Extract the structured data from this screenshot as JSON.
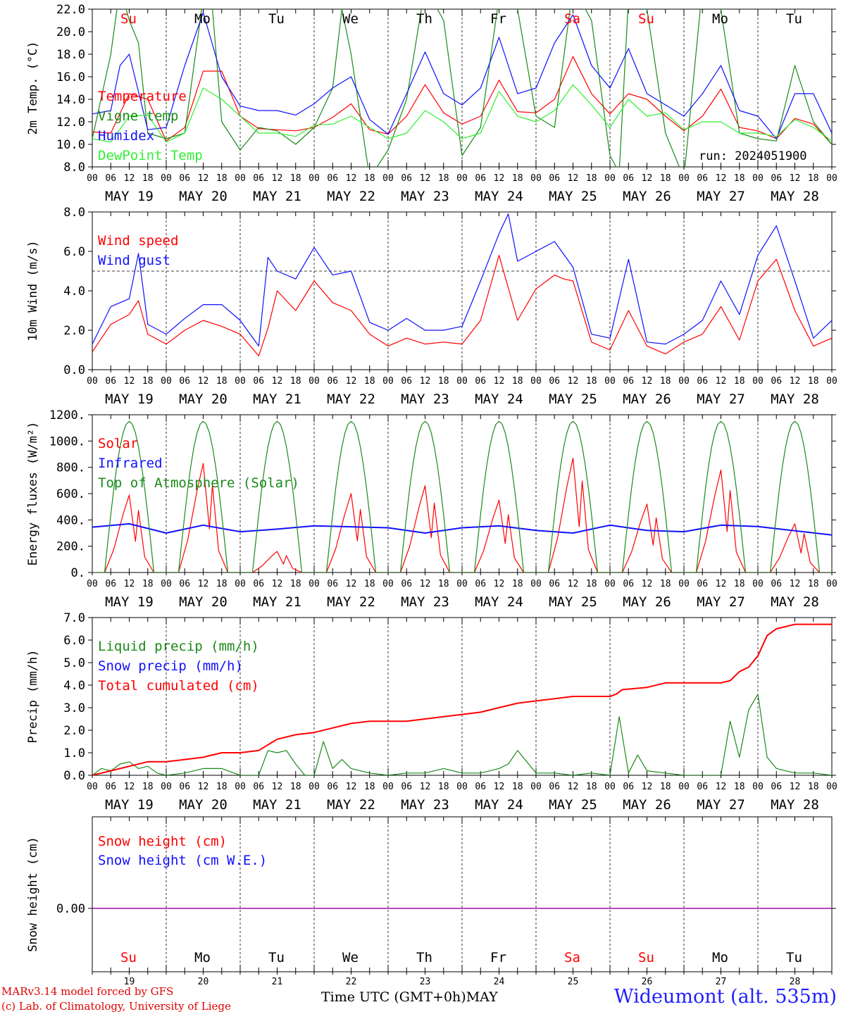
{
  "run_label": "run: 2024051900",
  "x_axis": {
    "hour_ticks": [
      "00",
      "06",
      "12",
      "18"
    ],
    "date_labels": [
      "MAY 19",
      "MAY 20",
      "MAY 21",
      "MAY 22",
      "MAY 23",
      "MAY 24",
      "MAY 25",
      "MAY 26",
      "MAY 27",
      "MAY 28"
    ],
    "weekdays": [
      "Su",
      "Mo",
      "Tu",
      "We",
      "Th",
      "Fr",
      "Sa",
      "Su",
      "Mo",
      "Tu"
    ],
    "weekend_flags": [
      true,
      false,
      false,
      false,
      false,
      false,
      true,
      true,
      false,
      false
    ],
    "day_numbers": [
      "19",
      "20",
      "21",
      "22",
      "23",
      "24",
      "25",
      "26",
      "27",
      "28"
    ],
    "month": "MAY",
    "time_label": "Time UTC (GMT+0h)"
  },
  "footer": {
    "credit_line1": "MARv3.14 model forced by GFS",
    "credit_line2": "(c) Lab. of Climatology, University of Liege",
    "station": "Wideumont (alt. 535m)"
  },
  "colors": {
    "red": "#ff0000",
    "dark_green": "#1a8a1a",
    "blue": "#1010ff",
    "light_green": "#33ee33",
    "purple": "#9900aa",
    "footer_red": "#e00000"
  },
  "chart_data": [
    {
      "type": "line",
      "ylabel": "2m Temp. (°C)",
      "ylim": [
        8,
        22
      ],
      "yticks": [
        8,
        10,
        12,
        14,
        16,
        18,
        20,
        22
      ],
      "ytick_labels": [
        "8.0",
        "10.0",
        "12.0",
        "14.0",
        "16.0",
        "18.0",
        "20.0",
        "22.0"
      ],
      "x_unit": "hours since 2024-05-19 00 UTC",
      "series": [
        {
          "name": "Temperature",
          "color": "#ff0000",
          "x": [
            0,
            6,
            12,
            18,
            24,
            30,
            36,
            42,
            48,
            54,
            60,
            66,
            72,
            78,
            84,
            90,
            96,
            102,
            108,
            114,
            120,
            126,
            132,
            138,
            144,
            150,
            156,
            162,
            168,
            174,
            180,
            186,
            192,
            198,
            204,
            210,
            216,
            222,
            228,
            234,
            240
          ],
          "y": [
            11.1,
            11.0,
            14.5,
            14.0,
            10.3,
            11.5,
            16.5,
            16.5,
            12.5,
            11.4,
            11.3,
            11.2,
            11.5,
            12.4,
            13.6,
            11.3,
            10.9,
            12.5,
            15.3,
            12.8,
            11.8,
            12.5,
            15.7,
            12.9,
            12.8,
            14.0,
            17.8,
            14.5,
            12.7,
            14.5,
            14.0,
            12.5,
            11.2,
            12.5,
            14.9,
            11.5,
            11.2,
            10.5,
            12.3,
            11.8,
            10.0
          ]
        },
        {
          "name": "Vigne temp",
          "color": "#1a8a1a",
          "x": [
            0,
            6,
            9,
            12,
            15,
            18,
            24,
            30,
            36,
            39,
            42,
            48,
            54,
            60,
            66,
            72,
            78,
            81,
            84,
            90,
            96,
            102,
            108,
            114,
            120,
            126,
            132,
            138,
            144,
            150,
            156,
            162,
            168,
            171,
            174,
            180,
            186,
            192,
            198,
            204,
            210,
            216,
            222,
            228,
            234,
            240
          ],
          "y": [
            10.5,
            18,
            24,
            21,
            19,
            11,
            10.5,
            11,
            23,
            22,
            12,
            9.5,
            11.5,
            11.2,
            10,
            11.5,
            15,
            22,
            18,
            7,
            9.5,
            14,
            24,
            21,
            9,
            11.5,
            23,
            22,
            12.5,
            11.5,
            24,
            21,
            9,
            7.5,
            23,
            22,
            11,
            7,
            24,
            22,
            11,
            10.5,
            10.3,
            17,
            12,
            10
          ]
        },
        {
          "name": "Humidex",
          "color": "#1010ff",
          "x": [
            0,
            6,
            9,
            12,
            18,
            24,
            30,
            36,
            42,
            48,
            54,
            60,
            66,
            72,
            78,
            84,
            90,
            96,
            102,
            108,
            114,
            120,
            126,
            132,
            138,
            144,
            150,
            156,
            162,
            168,
            174,
            180,
            186,
            192,
            198,
            204,
            210,
            216,
            222,
            228,
            234,
            240
          ],
          "y": [
            12.7,
            13,
            17,
            18,
            11.3,
            11.5,
            17,
            21.7,
            16,
            13.4,
            13,
            13,
            12.6,
            13.6,
            15,
            16,
            12.2,
            10.9,
            14.5,
            18.2,
            14.5,
            13.5,
            15,
            19.5,
            14.5,
            15,
            19,
            21.5,
            17,
            15,
            18.5,
            14.5,
            13.5,
            12.5,
            14.5,
            17,
            13,
            12.5,
            10.5,
            14.5,
            14.5,
            11
          ]
        },
        {
          "name": "DewPoint Temp",
          "color": "#33ee33",
          "x": [
            0,
            6,
            12,
            18,
            24,
            30,
            36,
            42,
            48,
            54,
            60,
            66,
            72,
            78,
            84,
            90,
            96,
            102,
            108,
            114,
            120,
            126,
            132,
            138,
            144,
            150,
            156,
            162,
            168,
            174,
            180,
            186,
            192,
            198,
            204,
            210,
            216,
            222,
            228,
            234,
            240
          ],
          "y": [
            10.5,
            10.2,
            12.5,
            12.6,
            10.2,
            11,
            15,
            14,
            12.5,
            11,
            11,
            10.7,
            11.7,
            11.8,
            12.5,
            11.5,
            10.5,
            11,
            13,
            12,
            10.5,
            11,
            14.7,
            12.5,
            12,
            13,
            15.3,
            13.5,
            11.5,
            14,
            12.5,
            12.8,
            11.3,
            12,
            12,
            11,
            11,
            10.7,
            12.2,
            11.5,
            10.3
          ]
        }
      ]
    },
    {
      "type": "line",
      "ylabel": "10m Wind (m/s)",
      "ylim": [
        0,
        8
      ],
      "yticks": [
        0,
        2,
        4,
        6,
        8
      ],
      "ytick_labels": [
        "0.0",
        "2.0",
        "4.0",
        "6.0",
        "8.0"
      ],
      "reference_line": 5,
      "series": [
        {
          "name": "Wind speed",
          "color": "#ff0000",
          "x": [
            0,
            6,
            12,
            15,
            18,
            24,
            30,
            36,
            42,
            48,
            54,
            57,
            60,
            66,
            72,
            78,
            84,
            90,
            96,
            102,
            108,
            114,
            120,
            126,
            132,
            138,
            144,
            150,
            153,
            156,
            162,
            168,
            174,
            180,
            186,
            192,
            198,
            204,
            210,
            216,
            222,
            228,
            234,
            240
          ],
          "y": [
            0.9,
            2.3,
            2.8,
            3.5,
            1.8,
            1.3,
            2.0,
            2.5,
            2.2,
            1.8,
            0.7,
            2.1,
            4.0,
            3.0,
            4.5,
            3.4,
            3.0,
            1.8,
            1.2,
            1.6,
            1.3,
            1.4,
            1.3,
            2.5,
            5.8,
            2.5,
            4.1,
            4.8,
            4.6,
            4.5,
            1.4,
            1.0,
            3.0,
            1.2,
            0.8,
            1.4,
            1.8,
            3.2,
            1.5,
            4.5,
            5.6,
            3.0,
            1.2,
            1.6
          ]
        },
        {
          "name": "Wind gust",
          "color": "#1010ff",
          "x": [
            0,
            6,
            12,
            15,
            18,
            24,
            30,
            36,
            42,
            48,
            54,
            57,
            60,
            66,
            72,
            78,
            84,
            90,
            96,
            102,
            108,
            114,
            120,
            126,
            132,
            135,
            138,
            144,
            150,
            156,
            162,
            168,
            174,
            180,
            186,
            192,
            198,
            204,
            210,
            216,
            222,
            228,
            234,
            240
          ],
          "y": [
            1.3,
            3.2,
            3.6,
            5.9,
            2.3,
            1.8,
            2.6,
            3.3,
            3.3,
            2.5,
            1.2,
            5.7,
            5.0,
            4.6,
            6.2,
            4.8,
            5.0,
            2.4,
            2.0,
            2.6,
            2.0,
            2.0,
            2.2,
            4.5,
            6.9,
            7.9,
            5.5,
            6.0,
            6.5,
            5.2,
            1.8,
            1.6,
            5.6,
            1.4,
            1.3,
            1.8,
            2.5,
            4.5,
            2.8,
            5.8,
            7.3,
            4.5,
            1.6,
            2.5
          ]
        }
      ]
    },
    {
      "type": "line",
      "ylabel": "Energy fluxes (W/m²)",
      "ylim": [
        0,
        1200
      ],
      "yticks": [
        0,
        200,
        400,
        600,
        800,
        1000,
        1200
      ],
      "ytick_labels": [
        "0.",
        "200.",
        "400.",
        "600.",
        "800.",
        "1000.",
        "1200."
      ],
      "solar_peaks": [
        590,
        830,
        160,
        600,
        660,
        550,
        870,
        520,
        780,
        370
      ],
      "toa_peak": 1150,
      "series": [
        {
          "name": "Solar",
          "color": "#ff0000"
        },
        {
          "name": "Infrared",
          "color": "#1010ff",
          "x": [
            0,
            12,
            24,
            36,
            48,
            60,
            72,
            96,
            108,
            120,
            132,
            144,
            156,
            168,
            180,
            192,
            204,
            216,
            240
          ],
          "y": [
            345,
            370,
            300,
            360,
            310,
            330,
            355,
            340,
            300,
            340,
            355,
            320,
            300,
            360,
            320,
            310,
            360,
            350,
            285
          ]
        },
        {
          "name": "Top of Atmosphere (Solar)",
          "color": "#1a8a1a"
        }
      ]
    },
    {
      "type": "line",
      "ylabel": "Precip (mm/h)",
      "ylim": [
        0,
        7
      ],
      "yticks": [
        0,
        1,
        2,
        3,
        4,
        5,
        6,
        7
      ],
      "ytick_labels": [
        "0.0",
        "1.0",
        "2.0",
        "3.0",
        "4.0",
        "5.0",
        "6.0",
        "7.0"
      ],
      "series": [
        {
          "name": "Liquid precip (mm/h)",
          "color": "#1a8a1a",
          "x": [
            0,
            3,
            6,
            9,
            12,
            15,
            18,
            21,
            24,
            30,
            36,
            42,
            48,
            54,
            57,
            60,
            63,
            66,
            69,
            72,
            75,
            78,
            81,
            84,
            90,
            96,
            102,
            108,
            114,
            120,
            126,
            132,
            135,
            138,
            144,
            150,
            156,
            162,
            168,
            171,
            174,
            177,
            180,
            186,
            192,
            198,
            204,
            207,
            210,
            213,
            216,
            219,
            222,
            228,
            234,
            240
          ],
          "y": [
            0,
            0.3,
            0.2,
            0.5,
            0.6,
            0.3,
            0.4,
            0.1,
            0,
            0.1,
            0.3,
            0.3,
            0,
            0,
            1.1,
            1.0,
            1.1,
            0.5,
            0,
            0,
            1.5,
            0.3,
            0.7,
            0.3,
            0.1,
            0,
            0.1,
            0.1,
            0.3,
            0.1,
            0.1,
            0.3,
            0.5,
            1.1,
            0.1,
            0.1,
            0,
            0.1,
            0,
            2.6,
            0.1,
            0.9,
            0.2,
            0.1,
            0,
            0,
            0,
            2.4,
            0.8,
            2.9,
            3.6,
            0.8,
            0.3,
            0.1,
            0.1,
            0
          ]
        },
        {
          "name": "Snow precip (mm/h)",
          "color": "#1010ff"
        },
        {
          "name": "Total cumulated (cm)",
          "color": "#ff0000",
          "x": [
            0,
            6,
            12,
            18,
            24,
            30,
            36,
            42,
            48,
            54,
            60,
            66,
            72,
            78,
            84,
            90,
            96,
            102,
            108,
            114,
            120,
            126,
            132,
            138,
            144,
            150,
            156,
            162,
            168,
            170,
            172,
            180,
            186,
            192,
            198,
            204,
            207,
            210,
            213,
            216,
            219,
            222,
            228,
            234,
            240
          ],
          "y": [
            0,
            0.2,
            0.4,
            0.6,
            0.6,
            0.7,
            0.8,
            1.0,
            1.0,
            1.1,
            1.6,
            1.8,
            1.9,
            2.1,
            2.3,
            2.4,
            2.4,
            2.4,
            2.5,
            2.6,
            2.7,
            2.8,
            3.0,
            3.2,
            3.3,
            3.4,
            3.5,
            3.5,
            3.5,
            3.6,
            3.8,
            3.9,
            4.1,
            4.1,
            4.1,
            4.1,
            4.2,
            4.6,
            4.8,
            5.3,
            6.2,
            6.5,
            6.7,
            6.7,
            6.7
          ]
        }
      ]
    },
    {
      "type": "line",
      "ylabel": "Snow height (cm)",
      "yticks": [
        0
      ],
      "ytick_labels": [
        "0.00"
      ],
      "series": [
        {
          "name": "Snow height (cm)",
          "color": "#ff0000",
          "x": [
            0,
            240
          ],
          "y": [
            0,
            0
          ]
        },
        {
          "name": "Snow height (cm W.E.)",
          "color": "#1010ff",
          "x": [
            0,
            240
          ],
          "y": [
            0,
            0
          ]
        }
      ]
    }
  ]
}
